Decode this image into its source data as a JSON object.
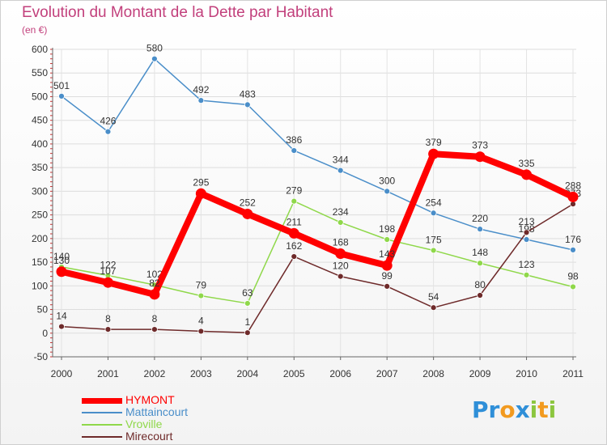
{
  "title": "Evolution du Montant de la Dette par Habitant",
  "subtitle": "(en €)",
  "logo": {
    "text": "Proxiti",
    "letters": [
      {
        "ch": "P",
        "color": "#2f8fd8"
      },
      {
        "ch": "r",
        "color": "#2f8fd8"
      },
      {
        "ch": "o",
        "color": "#f29a1f"
      },
      {
        "ch": "x",
        "color": "#2f8fd8"
      },
      {
        "ch": "i",
        "color": "#8cc63f"
      },
      {
        "ch": "t",
        "color": "#f29a1f"
      },
      {
        "ch": "i",
        "color": "#8cc63f"
      }
    ]
  },
  "chart_data": {
    "type": "line",
    "title": "Evolution du Montant de la Dette par Habitant",
    "subtitle": "(en €)",
    "x": [
      "2000",
      "2001",
      "2002",
      "2003",
      "2004",
      "2005",
      "2006",
      "2007",
      "2008",
      "2009",
      "2010",
      "2011"
    ],
    "ylim": [
      -50,
      600
    ],
    "y_ticks": [
      -50,
      0,
      50,
      100,
      150,
      200,
      250,
      300,
      350,
      400,
      450,
      500,
      550,
      600
    ],
    "grid": true,
    "legend_position": "bottom-left",
    "series": [
      {
        "name": "Mattaincourt",
        "color": "#4a8ec9",
        "values": [
          501,
          426,
          580,
          492,
          483,
          386,
          344,
          300,
          254,
          220,
          198,
          176
        ]
      },
      {
        "name": "Vroville",
        "color": "#8fd84a",
        "values": [
          140,
          122,
          102,
          79,
          63,
          279,
          234,
          198,
          175,
          148,
          123,
          98
        ]
      },
      {
        "name": "Mirecourt",
        "color": "#6e2a2a",
        "values": [
          14,
          8,
          8,
          4,
          1,
          162,
          120,
          99,
          54,
          80,
          213,
          273
        ]
      },
      {
        "name": "HYMONT",
        "color": "#ff0000",
        "values": [
          130,
          107,
          82,
          295,
          252,
          211,
          168,
          143,
          379,
          373,
          335,
          288
        ]
      }
    ]
  },
  "legend": [
    {
      "name": "HYMONT",
      "color": "#ff0000",
      "thickness": 7
    },
    {
      "name": "Mattaincourt",
      "color": "#4a8ec9",
      "thickness": 2
    },
    {
      "name": "Vroville",
      "color": "#8fd84a",
      "thickness": 2
    },
    {
      "name": "Mirecourt",
      "color": "#6e2a2a",
      "thickness": 2
    }
  ]
}
